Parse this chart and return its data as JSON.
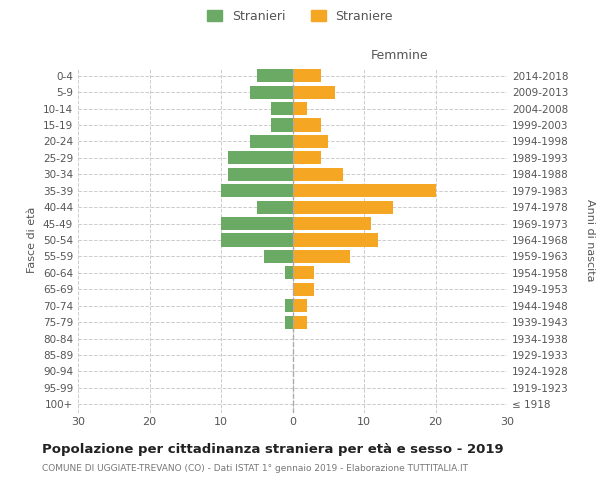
{
  "age_groups": [
    "100+",
    "95-99",
    "90-94",
    "85-89",
    "80-84",
    "75-79",
    "70-74",
    "65-69",
    "60-64",
    "55-59",
    "50-54",
    "45-49",
    "40-44",
    "35-39",
    "30-34",
    "25-29",
    "20-24",
    "15-19",
    "10-14",
    "5-9",
    "0-4"
  ],
  "birth_years": [
    "≤ 1918",
    "1919-1923",
    "1924-1928",
    "1929-1933",
    "1934-1938",
    "1939-1943",
    "1944-1948",
    "1949-1953",
    "1954-1958",
    "1959-1963",
    "1964-1968",
    "1969-1973",
    "1974-1978",
    "1979-1983",
    "1984-1988",
    "1989-1993",
    "1994-1998",
    "1999-2003",
    "2004-2008",
    "2009-2013",
    "2014-2018"
  ],
  "males": [
    0,
    0,
    0,
    0,
    0,
    1,
    1,
    0,
    1,
    4,
    10,
    10,
    5,
    10,
    9,
    9,
    6,
    3,
    3,
    6,
    5
  ],
  "females": [
    0,
    0,
    0,
    0,
    0,
    2,
    2,
    3,
    3,
    8,
    12,
    11,
    14,
    20,
    7,
    4,
    5,
    4,
    2,
    6,
    4
  ],
  "male_color": "#6aaa64",
  "female_color": "#f5a623",
  "background_color": "#ffffff",
  "grid_color": "#cccccc",
  "title": "Popolazione per cittadinanza straniera per età e sesso - 2019",
  "subtitle": "COMUNE DI UGGIATE-TREVANO (CO) - Dati ISTAT 1° gennaio 2019 - Elaborazione TUTTITALIA.IT",
  "xlabel_right": "Femmine",
  "ylabel_left": "Fasce di età",
  "ylabel_right": "Anni di nascita",
  "legend_male": "Stranieri",
  "legend_female": "Straniere",
  "xlim": 30,
  "bar_height": 0.8
}
